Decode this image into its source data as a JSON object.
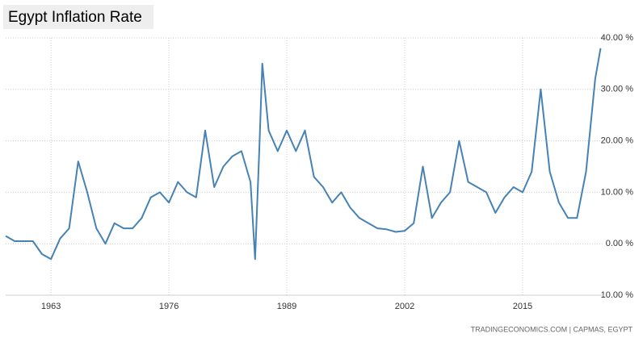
{
  "chart_data": {
    "type": "line",
    "title": "Egypt Inflation Rate",
    "source": "TRADINGECONOMICS.COM  |  CAPMAS, EGYPT",
    "x": [
      1958,
      1959,
      1960,
      1961,
      1962,
      1963,
      1964,
      1965,
      1966,
      1967,
      1968,
      1969,
      1970,
      1971,
      1972,
      1973,
      1974,
      1975,
      1976,
      1977,
      1978,
      1979,
      1980,
      1981,
      1982,
      1983,
      1984,
      1985,
      1985.5,
      1986,
      1986.3,
      1987,
      1988,
      1989,
      1990,
      1991,
      1992,
      1993,
      1994,
      1995,
      1996,
      1997,
      1998,
      1999,
      2000,
      2001,
      2002,
      2003,
      2004,
      2005,
      2006,
      2007,
      2008,
      2009,
      2010,
      2011,
      2012,
      2013,
      2014,
      2015,
      2016,
      2017,
      2018,
      2019,
      2020,
      2021,
      2022,
      2023,
      2023.6
    ],
    "series": [
      {
        "name": "Inflation Rate",
        "color": "#4682b4",
        "values": [
          1.5,
          0.5,
          0.5,
          0.5,
          -2,
          -3,
          1,
          3,
          16,
          10,
          3,
          0,
          4,
          3,
          3,
          5,
          9,
          10,
          8,
          12,
          10,
          9,
          22,
          11,
          15,
          17,
          18,
          12,
          -3,
          20,
          35,
          22,
          18,
          22,
          18,
          22,
          13,
          11,
          8,
          10,
          7,
          5,
          4,
          3,
          2.8,
          2.3,
          2.5,
          4,
          15,
          5,
          8,
          10,
          20,
          12,
          11,
          10,
          6,
          9,
          11,
          10,
          14,
          30,
          14,
          8,
          5,
          5,
          14,
          32,
          38
        ]
      }
    ],
    "xlim": [
      1958,
      2024
    ],
    "xticks": [
      1963,
      1976,
      1989,
      2002,
      2015
    ],
    "ylim": [
      -10,
      40
    ],
    "yticks": [
      {
        "value": -10,
        "label": "-10.00 %"
      },
      {
        "value": 0,
        "label": "0.00 %"
      },
      {
        "value": 10,
        "label": "10.00 %"
      },
      {
        "value": 20,
        "label": "20.00 %"
      },
      {
        "value": 30,
        "label": "30.00 %"
      },
      {
        "value": 40,
        "label": "40.00 %"
      }
    ],
    "grid": true
  }
}
